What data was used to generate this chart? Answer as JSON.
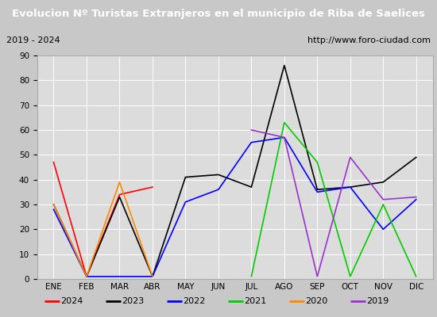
{
  "title": "Evolucion Nº Turistas Extranjeros en el municipio de Riba de Saelices",
  "subtitle_left": "2019 - 2024",
  "subtitle_right": "http://www.foro-ciudad.com",
  "title_bg_color": "#4a7abf",
  "title_text_color": "#ffffff",
  "subtitle_bg_color": "#f5f5f5",
  "plot_bg_color": "#dcdcdc",
  "fig_bg_color": "#c8c8c8",
  "months": [
    "ENE",
    "FEB",
    "MAR",
    "ABR",
    "MAY",
    "JUN",
    "JUL",
    "AGO",
    "SEP",
    "OCT",
    "NOV",
    "DIC"
  ],
  "ylim": [
    0,
    90
  ],
  "yticks": [
    0,
    10,
    20,
    30,
    40,
    50,
    60,
    70,
    80,
    90
  ],
  "series": {
    "2024": {
      "color": "#ff0000",
      "data": [
        47,
        1,
        34,
        37,
        null,
        null,
        null,
        null,
        null,
        null,
        null,
        null
      ]
    },
    "2023": {
      "color": "#000000",
      "data": [
        30,
        1,
        33,
        1,
        41,
        42,
        37,
        86,
        36,
        37,
        39,
        49
      ]
    },
    "2022": {
      "color": "#0000ff",
      "data": [
        28,
        1,
        1,
        1,
        31,
        36,
        55,
        57,
        35,
        37,
        20,
        32
      ]
    },
    "2021": {
      "color": "#00cc00",
      "data": [
        null,
        null,
        null,
        null,
        null,
        null,
        1,
        63,
        47,
        1,
        30,
        1
      ]
    },
    "2020": {
      "color": "#ff8800",
      "data": [
        30,
        1,
        39,
        1,
        null,
        null,
        null,
        null,
        null,
        null,
        null,
        null
      ]
    },
    "2019": {
      "color": "#9933cc",
      "data": [
        null,
        null,
        null,
        null,
        null,
        null,
        60,
        57,
        1,
        49,
        32,
        33
      ]
    }
  },
  "legend_order": [
    "2024",
    "2023",
    "2022",
    "2021",
    "2020",
    "2019"
  ]
}
